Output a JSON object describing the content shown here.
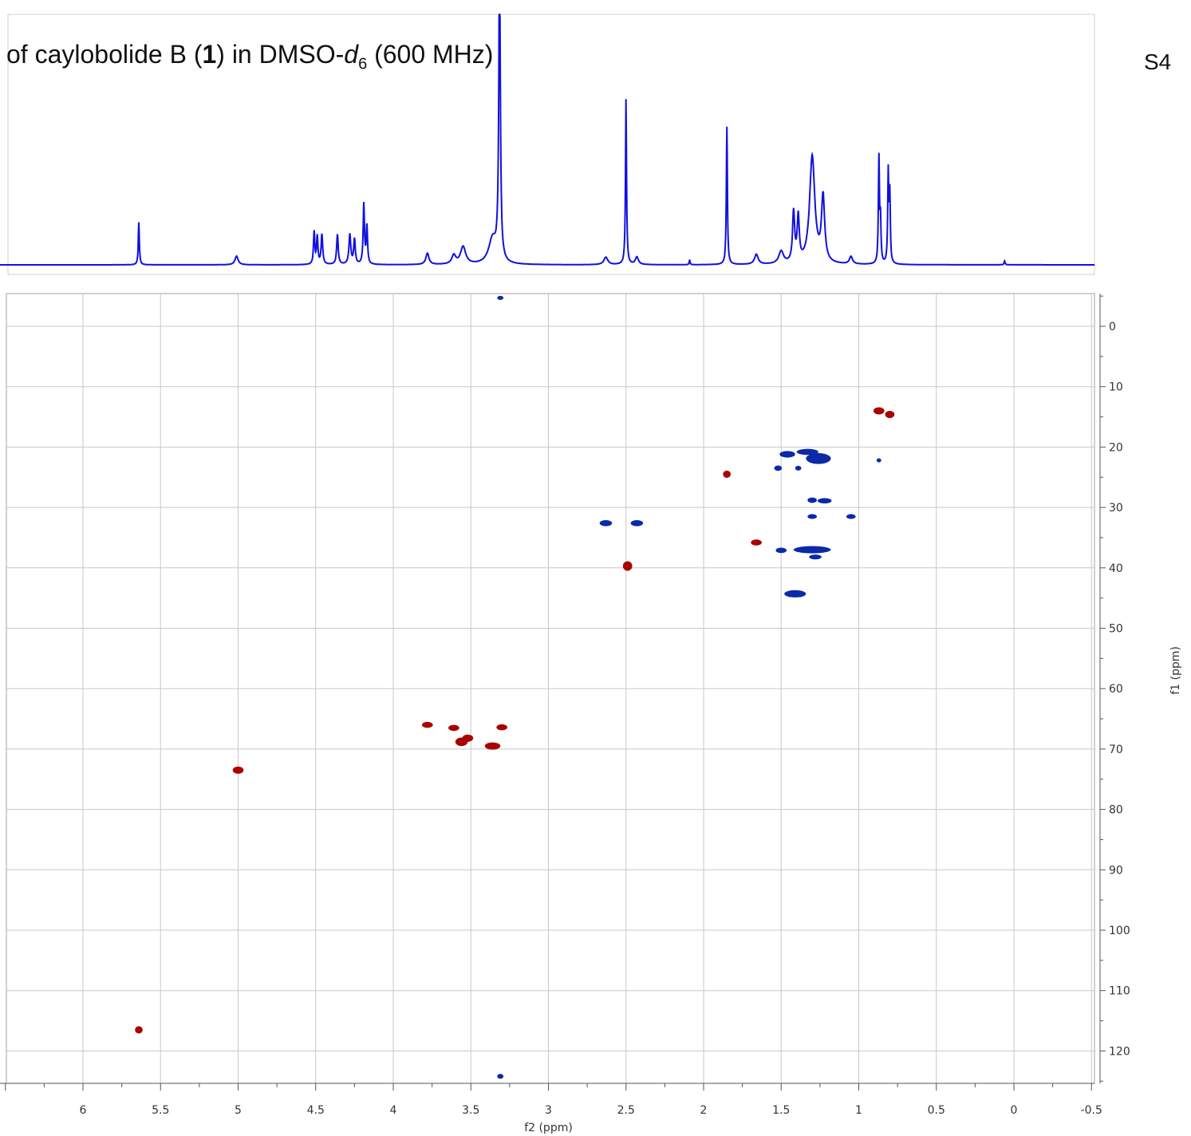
{
  "page": {
    "title_prefix": "of caylobolide B (",
    "compound_number": "1",
    "title_middle": ") in DMSO-",
    "solvent_italic": "d",
    "solvent_sub": "6",
    "title_suffix": " (600 MHz)",
    "page_label": "S4"
  },
  "chart_data": {
    "type": "scatter",
    "title": "",
    "xlabel": "f2 (ppm)",
    "ylabel": "f1 (ppm)",
    "xlim": [
      6.5,
      -0.5
    ],
    "ylim": [
      -5,
      125
    ],
    "x_ticks": [
      6,
      5.5,
      5,
      4.5,
      4,
      3.5,
      3,
      2.5,
      2,
      1.5,
      1,
      0.5,
      0,
      -0.5
    ],
    "x_tick_labels": [
      "6",
      "5.5",
      "5",
      "4.5",
      "4",
      "3.5",
      "3",
      "2.5",
      "2",
      "1.5",
      "1",
      "0.5",
      "0",
      "-0.5"
    ],
    "y_ticks": [
      0,
      10,
      20,
      30,
      40,
      50,
      60,
      70,
      80,
      90,
      100,
      110,
      120
    ],
    "y_tick_labels": [
      "0",
      "10",
      "20",
      "30",
      "40",
      "50",
      "60",
      "70",
      "80",
      "90",
      "100",
      "110",
      "120"
    ],
    "grid": true,
    "colors": {
      "positive": "#aa0000",
      "negative": "#0a2aa8",
      "projection": "#1010e0",
      "grid": "#c8c8c8"
    },
    "projection_1h": {
      "baseline": 0.02,
      "peaks": [
        {
          "x": 5.64,
          "h": 0.17,
          "w": 0.004
        },
        {
          "x": 5.01,
          "h": 0.035,
          "w": 0.012
        },
        {
          "x": 4.51,
          "h": 0.13,
          "w": 0.005
        },
        {
          "x": 4.49,
          "h": 0.11,
          "w": 0.005
        },
        {
          "x": 4.46,
          "h": 0.12,
          "w": 0.006
        },
        {
          "x": 4.36,
          "h": 0.12,
          "w": 0.006
        },
        {
          "x": 4.28,
          "h": 0.12,
          "w": 0.007
        },
        {
          "x": 4.25,
          "h": 0.1,
          "w": 0.006
        },
        {
          "x": 4.19,
          "h": 0.24,
          "w": 0.005
        },
        {
          "x": 4.17,
          "h": 0.15,
          "w": 0.005
        },
        {
          "x": 3.78,
          "h": 0.045,
          "w": 0.012
        },
        {
          "x": 3.61,
          "h": 0.035,
          "w": 0.015
        },
        {
          "x": 3.55,
          "h": 0.07,
          "w": 0.02
        },
        {
          "x": 3.36,
          "h": 0.1,
          "w": 0.03
        },
        {
          "x": 3.315,
          "h": 1.2,
          "w": 0.006
        },
        {
          "x": 2.63,
          "h": 0.03,
          "w": 0.015
        },
        {
          "x": 2.5,
          "h": 0.66,
          "w": 0.004
        },
        {
          "x": 2.43,
          "h": 0.03,
          "w": 0.012
        },
        {
          "x": 2.09,
          "h": 0.02,
          "w": 0.003
        },
        {
          "x": 1.85,
          "h": 0.55,
          "w": 0.004
        },
        {
          "x": 1.66,
          "h": 0.04,
          "w": 0.014
        },
        {
          "x": 1.5,
          "h": 0.05,
          "w": 0.018
        },
        {
          "x": 1.42,
          "h": 0.2,
          "w": 0.008
        },
        {
          "x": 1.39,
          "h": 0.18,
          "w": 0.008
        },
        {
          "x": 1.3,
          "h": 0.43,
          "w": 0.02
        },
        {
          "x": 1.23,
          "h": 0.26,
          "w": 0.012
        },
        {
          "x": 1.05,
          "h": 0.03,
          "w": 0.012
        },
        {
          "x": 0.87,
          "h": 0.42,
          "w": 0.004
        },
        {
          "x": 0.86,
          "h": 0.17,
          "w": 0.004
        },
        {
          "x": 0.81,
          "h": 0.36,
          "w": 0.004
        },
        {
          "x": 0.8,
          "h": 0.27,
          "w": 0.004
        },
        {
          "x": 0.06,
          "h": 0.015,
          "w": 0.004
        }
      ]
    },
    "series": [
      {
        "phase": "positive",
        "points": [
          {
            "x": 5.64,
            "y": 116.5,
            "dx": 0.025,
            "dy": 0.6
          },
          {
            "x": 5.0,
            "y": 73.5,
            "dx": 0.035,
            "dy": 0.6
          },
          {
            "x": 3.78,
            "y": 66.0,
            "dx": 0.035,
            "dy": 0.5
          },
          {
            "x": 3.61,
            "y": 66.5,
            "dx": 0.035,
            "dy": 0.5
          },
          {
            "x": 3.56,
            "y": 68.8,
            "dx": 0.04,
            "dy": 0.7
          },
          {
            "x": 3.52,
            "y": 68.2,
            "dx": 0.035,
            "dy": 0.6
          },
          {
            "x": 3.36,
            "y": 69.5,
            "dx": 0.05,
            "dy": 0.6
          },
          {
            "x": 3.3,
            "y": 66.4,
            "dx": 0.035,
            "dy": 0.5
          },
          {
            "x": 2.49,
            "y": 39.7,
            "dx": 0.03,
            "dy": 0.8
          },
          {
            "x": 1.85,
            "y": 24.5,
            "dx": 0.025,
            "dy": 0.6
          },
          {
            "x": 1.66,
            "y": 35.8,
            "dx": 0.035,
            "dy": 0.5
          },
          {
            "x": 0.87,
            "y": 14.0,
            "dx": 0.035,
            "dy": 0.6
          },
          {
            "x": 0.8,
            "y": 14.6,
            "dx": 0.03,
            "dy": 0.6
          }
        ]
      },
      {
        "phase": "negative",
        "points": [
          {
            "x": 3.31,
            "y": -4.7,
            "dx": 0.02,
            "dy": 0.3
          },
          {
            "x": 3.31,
            "y": 124.2,
            "dx": 0.02,
            "dy": 0.4
          },
          {
            "x": 2.63,
            "y": 32.6,
            "dx": 0.04,
            "dy": 0.5
          },
          {
            "x": 2.43,
            "y": 32.6,
            "dx": 0.04,
            "dy": 0.5
          },
          {
            "x": 1.5,
            "y": 37.1,
            "dx": 0.035,
            "dy": 0.45
          },
          {
            "x": 1.52,
            "y": 23.5,
            "dx": 0.025,
            "dy": 0.45
          },
          {
            "x": 1.46,
            "y": 21.2,
            "dx": 0.05,
            "dy": 0.55
          },
          {
            "x": 1.39,
            "y": 23.5,
            "dx": 0.02,
            "dy": 0.4
          },
          {
            "x": 1.41,
            "y": 44.3,
            "dx": 0.07,
            "dy": 0.6
          },
          {
            "x": 1.33,
            "y": 20.8,
            "dx": 0.07,
            "dy": 0.5
          },
          {
            "x": 1.26,
            "y": 21.9,
            "dx": 0.08,
            "dy": 0.9
          },
          {
            "x": 1.3,
            "y": 28.8,
            "dx": 0.03,
            "dy": 0.45
          },
          {
            "x": 1.22,
            "y": 28.9,
            "dx": 0.045,
            "dy": 0.45
          },
          {
            "x": 1.3,
            "y": 31.5,
            "dx": 0.03,
            "dy": 0.4
          },
          {
            "x": 1.05,
            "y": 31.5,
            "dx": 0.03,
            "dy": 0.4
          },
          {
            "x": 1.3,
            "y": 37.0,
            "dx": 0.12,
            "dy": 0.6
          },
          {
            "x": 1.28,
            "y": 38.2,
            "dx": 0.04,
            "dy": 0.4
          },
          {
            "x": 0.87,
            "y": 22.2,
            "dx": 0.015,
            "dy": 0.3
          }
        ]
      }
    ]
  }
}
